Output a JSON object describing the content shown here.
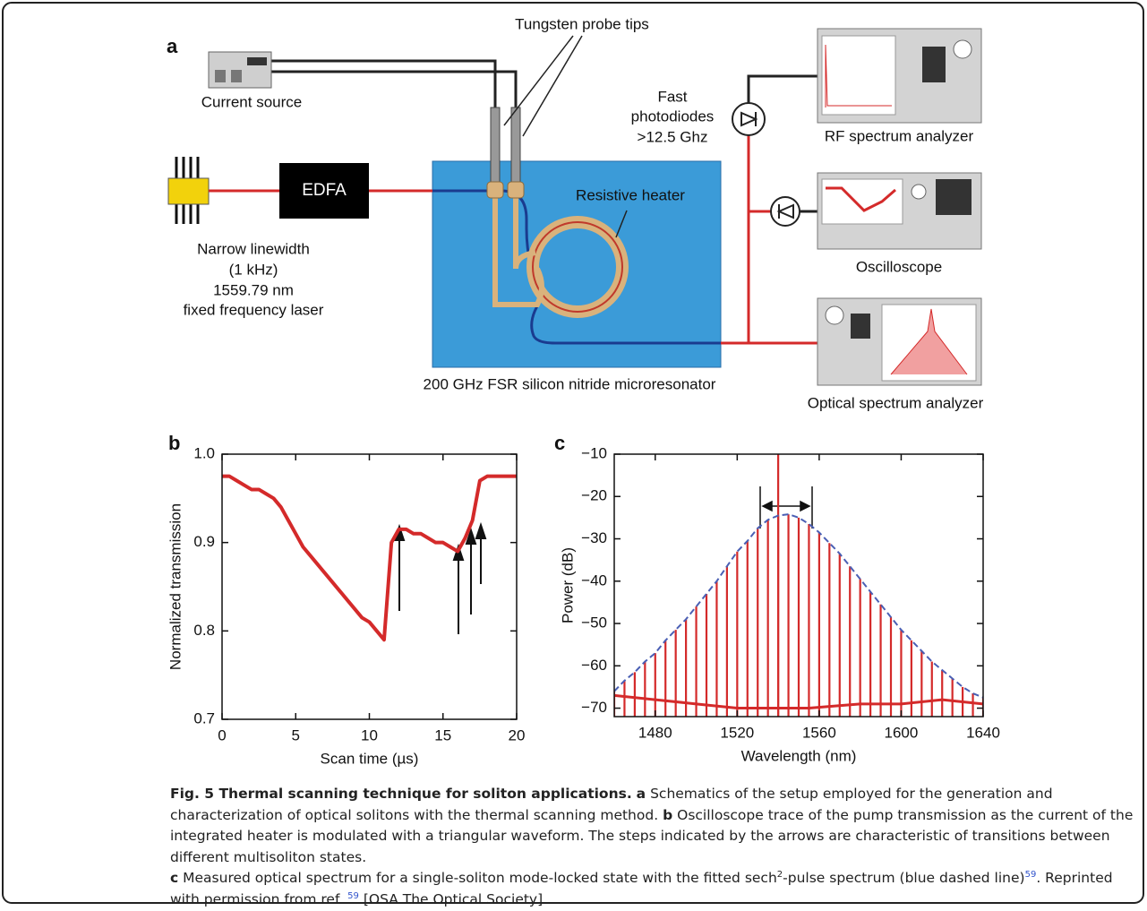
{
  "diagram": {
    "panel_label": "a",
    "probe_tips": "Tungsten probe tips",
    "current_source": "Current source",
    "laser": [
      "Narrow linewidth",
      "(1 kHz)",
      "1559.79 nm",
      "fixed frequency laser"
    ],
    "edfa": "EDFA",
    "photodiodes": [
      "Fast",
      "photodiodes",
      ">12.5 Ghz"
    ],
    "heater": "Resistive heater",
    "rf_analyzer": "RF spectrum analyzer",
    "oscilloscope": "Oscilloscope",
    "osa": "Optical spectrum analyzer",
    "chip": "200 GHz FSR silicon nitride microresonator"
  },
  "chart_data": [
    {
      "type": "line",
      "panel_label": "b",
      "xlabel": "Scan time (µs)",
      "ylabel": "Normalized transmission",
      "xlim": [
        0,
        20
      ],
      "xticks": [
        0,
        5,
        10,
        15,
        20
      ],
      "ylim": [
        0.7,
        1.0
      ],
      "yticks": [
        0.7,
        0.8,
        0.9,
        {
          "value": 1.0,
          "label": "1.0"
        }
      ],
      "series": [
        {
          "color": "#d42a2a",
          "style": "solid",
          "x": [
            0,
            0.5,
            1,
            1.5,
            2,
            2.5,
            3,
            3.5,
            4,
            4.5,
            5,
            5.5,
            6,
            6.5,
            7,
            7.5,
            8,
            8.5,
            9,
            9.5,
            10,
            10.5,
            11,
            11.5,
            12,
            12.5,
            13,
            13.5,
            14,
            14.5,
            15,
            15.5,
            16,
            16.5,
            17,
            17.5,
            18,
            18.5,
            19,
            19.5,
            20
          ],
          "values": [
            0.975,
            0.975,
            0.97,
            0.965,
            0.96,
            0.96,
            0.955,
            0.95,
            0.94,
            0.925,
            0.91,
            0.895,
            0.885,
            0.875,
            0.865,
            0.855,
            0.845,
            0.835,
            0.825,
            0.815,
            0.81,
            0.8,
            0.79,
            0.9,
            0.915,
            0.915,
            0.91,
            0.91,
            0.905,
            0.9,
            0.9,
            0.895,
            0.89,
            0.905,
            0.925,
            0.97,
            0.975,
            0.975,
            0.975,
            0.975,
            0.975
          ]
        }
      ]
    },
    {
      "type": "spectrum",
      "panel_label": "c",
      "xlabel": "Wavelength (nm)",
      "ylabel": "Power (dB)",
      "xlim": [
        1460,
        1640
      ],
      "xticks": [
        1480,
        1520,
        1560,
        1600,
        1640
      ],
      "ylim": [
        -72,
        -10
      ],
      "yticks": [
        {
          "value": -10,
          "label": "−10"
        },
        {
          "value": -20,
          "label": "−20"
        },
        {
          "value": -30,
          "label": "−30"
        },
        {
          "value": -40,
          "label": "−40"
        },
        {
          "value": -50,
          "label": "−50"
        },
        {
          "value": -60,
          "label": "−60"
        },
        {
          "value": -70,
          "label": "−70"
        }
      ],
      "series": [
        {
          "color": "#d42a2a",
          "style": "solid",
          "x": [
            1460,
            1480,
            1500,
            1520,
            1530,
            1555,
            1580,
            1600,
            1620,
            1640
          ],
          "values": [
            -67,
            -68,
            -69,
            -70,
            -70,
            -70,
            -69,
            -69,
            -68,
            -69
          ]
        },
        {
          "color": "#d42a2a",
          "style": "stem",
          "x": [
            1460,
            1465,
            1470,
            1475,
            1480,
            1485,
            1490,
            1495,
            1500,
            1505,
            1510,
            1515,
            1520,
            1525,
            1530,
            1535,
            1540,
            1545,
            1550,
            1555,
            1560,
            1565,
            1570,
            1575,
            1580,
            1585,
            1590,
            1595,
            1600,
            1605,
            1610,
            1615,
            1620,
            1625,
            1630,
            1635,
            1640
          ],
          "values": [
            -66,
            -63.5,
            -61.5,
            -59,
            -57,
            -54,
            -51.5,
            -49,
            -46,
            -43,
            -40,
            -36.5,
            -33,
            -30.5,
            -27.5,
            -25.5,
            -24.5,
            -24.2,
            -25,
            -26.5,
            -28.5,
            -31,
            -33.5,
            -36.5,
            -39.5,
            -42.5,
            -45.5,
            -48.5,
            -51.5,
            -54,
            -56.5,
            -59,
            -61,
            -63,
            -65,
            -66.5,
            -67.5
          ]
        },
        {
          "color": "#d42a2a",
          "style": "stem",
          "x": [
            1540
          ],
          "values": [
            -10
          ]
        },
        {
          "color": "#4a5fb4",
          "style": "dashed",
          "x": [
            1460,
            1465,
            1470,
            1475,
            1480,
            1485,
            1490,
            1495,
            1500,
            1505,
            1510,
            1515,
            1520,
            1525,
            1530,
            1535,
            1540,
            1545,
            1550,
            1555,
            1560,
            1565,
            1570,
            1575,
            1580,
            1585,
            1590,
            1595,
            1600,
            1605,
            1610,
            1615,
            1620,
            1625,
            1630,
            1635,
            1640
          ],
          "values": [
            -66,
            -63.5,
            -61.5,
            -59,
            -57,
            -54,
            -51.5,
            -49,
            -46,
            -43,
            -40,
            -36.5,
            -33,
            -30.5,
            -27.5,
            -25.5,
            -24.5,
            -24.2,
            -25,
            -26.5,
            -28.5,
            -31,
            -33.5,
            -36.5,
            -39.5,
            -42.5,
            -45.5,
            -48.5,
            -51.5,
            -54,
            -56.5,
            -59,
            -61,
            -63,
            -65,
            -66.5,
            -67.5
          ]
        }
      ]
    }
  ],
  "caption": {
    "title": "Fig. 5 Thermal scanning technique for soliton applications.",
    "a_label": "a",
    "a_text": "Schematics of the setup employed for the generation and characterization of optical solitons with the thermal scanning method.",
    "b_label": "b",
    "b_text": "Oscilloscope trace of the pump transmission as the current of the integrated heater is modulated with a triangular waveform. The steps indicated by the arrows are characteristic of transitions between different multisoliton states.",
    "c_label": "c",
    "c_text_1": "Measured optical spectrum for a single-soliton mode-locked state with the fitted sech",
    "sup_2": "2",
    "c_text_2": "-pulse spectrum (blue dashed line)",
    "ref_1": "59",
    "c_text_3": ". Reprinted with permission from ref.",
    "ref_2": "59",
    "c_text_4": "[OSA The Optical Society]"
  }
}
